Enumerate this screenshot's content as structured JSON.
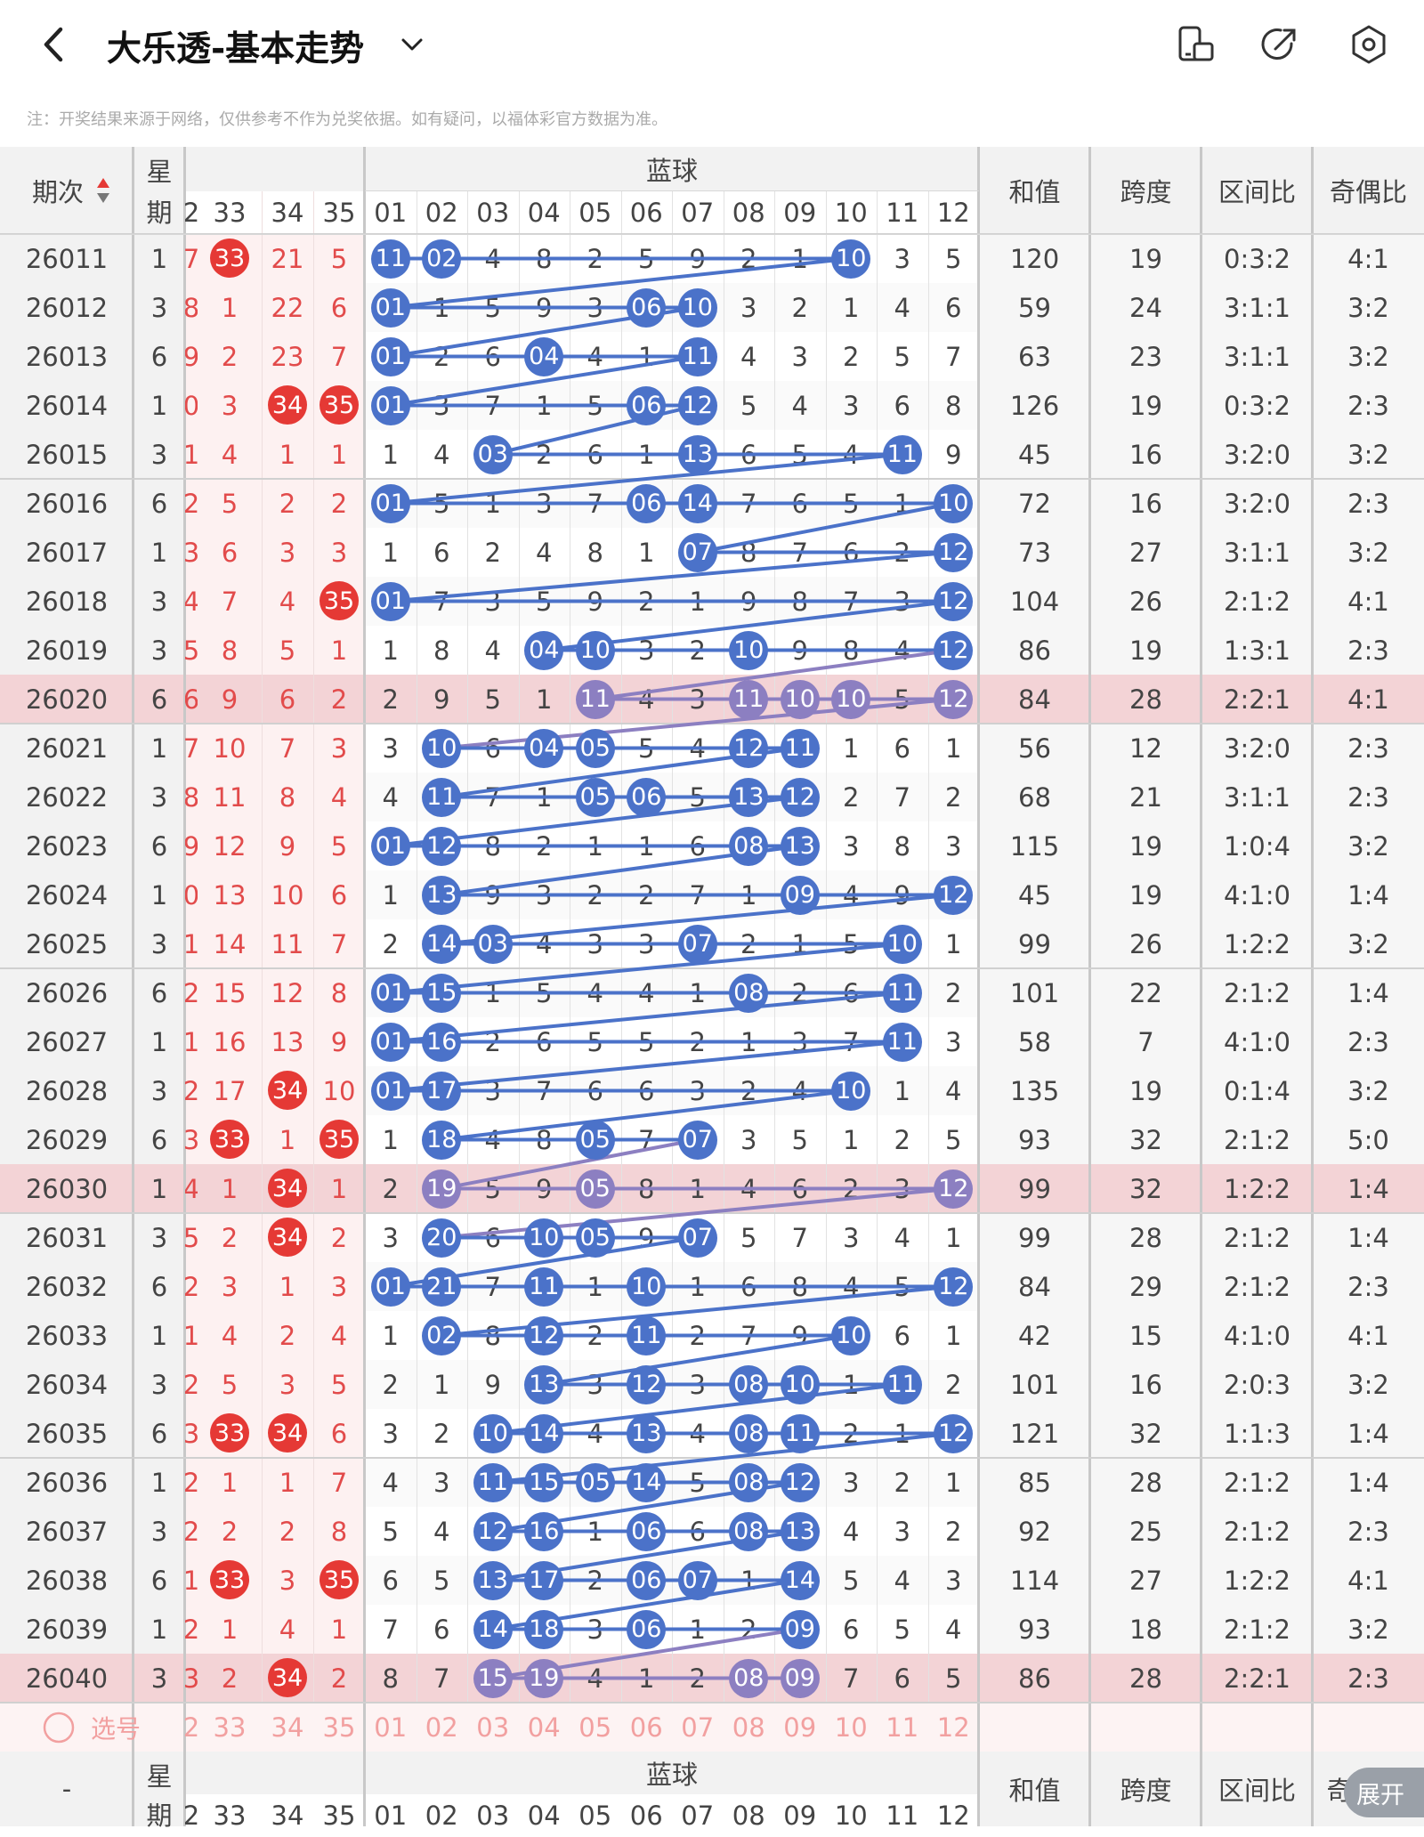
{
  "header": {
    "title": "大乐透-基本走势",
    "back_icon": "chevron-left-icon",
    "dropdown_icon": "chevron-down-icon",
    "actions": [
      "phone-rotate-icon",
      "share-icon",
      "settings-icon"
    ]
  },
  "note": "注：开奖结果来源于网络，仅供参考不作为兑奖依据。如有疑问，以福体彩官方数据为准。",
  "columns": {
    "period": "期次",
    "weekday": "星期",
    "blue_group": "蓝球",
    "sum": "和值",
    "span": "跨度",
    "zone_ratio": "区间比",
    "odd_even": "奇偶比",
    "red_partial": "2",
    "red_headers": [
      "33",
      "34",
      "35"
    ],
    "blue_headers": [
      "01",
      "02",
      "03",
      "04",
      "05",
      "06",
      "07",
      "08",
      "09",
      "10",
      "11",
      "12"
    ]
  },
  "rows": [
    {
      "period": "26011",
      "weekday": "1",
      "r0": "7",
      "red": [
        "33",
        "21",
        "5"
      ],
      "blue": [
        "11",
        "02",
        "4",
        "8",
        "2",
        "5",
        "9",
        "2",
        "1",
        "10",
        "3",
        "5"
      ],
      "sum": "120",
      "span": "19",
      "zone": "0:3:2",
      "oe": "4:1"
    },
    {
      "period": "26012",
      "weekday": "3",
      "r0": "8",
      "red": [
        "1",
        "22",
        "6"
      ],
      "blue": [
        "01",
        "1",
        "5",
        "9",
        "3",
        "06",
        "10",
        "3",
        "2",
        "1",
        "4",
        "6"
      ],
      "sum": "59",
      "span": "24",
      "zone": "3:1:1",
      "oe": "3:2"
    },
    {
      "period": "26013",
      "weekday": "6",
      "r0": "9",
      "red": [
        "2",
        "23",
        "7"
      ],
      "blue": [
        "01",
        "2",
        "6",
        "04",
        "4",
        "1",
        "11",
        "4",
        "3",
        "2",
        "5",
        "7"
      ],
      "sum": "63",
      "span": "23",
      "zone": "3:1:1",
      "oe": "3:2"
    },
    {
      "period": "26014",
      "weekday": "1",
      "r0": "0",
      "red": [
        "3",
        "34",
        "35"
      ],
      "blue": [
        "01",
        "3",
        "7",
        "1",
        "5",
        "06",
        "12",
        "5",
        "4",
        "3",
        "6",
        "8"
      ],
      "sum": "126",
      "span": "19",
      "zone": "0:3:2",
      "oe": "2:3"
    },
    {
      "period": "26015",
      "weekday": "3",
      "r0": "1",
      "red": [
        "4",
        "1",
        "1"
      ],
      "blue": [
        "1",
        "4",
        "03",
        "2",
        "6",
        "1",
        "13",
        "6",
        "5",
        "4",
        "11",
        "9"
      ],
      "sum": "45",
      "span": "16",
      "zone": "3:2:0",
      "oe": "3:2"
    },
    {
      "period": "26016",
      "weekday": "6",
      "r0": "2",
      "red": [
        "5",
        "2",
        "2"
      ],
      "blue": [
        "01",
        "5",
        "1",
        "3",
        "7",
        "06",
        "14",
        "7",
        "6",
        "5",
        "1",
        "10"
      ],
      "sum": "72",
      "span": "16",
      "zone": "3:2:0",
      "oe": "2:3"
    },
    {
      "period": "26017",
      "weekday": "1",
      "r0": "3",
      "red": [
        "6",
        "3",
        "3"
      ],
      "blue": [
        "1",
        "6",
        "2",
        "4",
        "8",
        "1",
        "07",
        "8",
        "7",
        "6",
        "2",
        "12"
      ],
      "sum": "73",
      "span": "27",
      "zone": "3:1:1",
      "oe": "3:2"
    },
    {
      "period": "26018",
      "weekday": "3",
      "r0": "4",
      "red": [
        "7",
        "4",
        "35"
      ],
      "blue": [
        "01",
        "7",
        "3",
        "5",
        "9",
        "2",
        "1",
        "9",
        "8",
        "7",
        "3",
        "12"
      ],
      "sum": "104",
      "span": "26",
      "zone": "2:1:2",
      "oe": "4:1"
    },
    {
      "period": "26019",
      "weekday": "3",
      "r0": "5",
      "red": [
        "8",
        "5",
        "1"
      ],
      "blue": [
        "1",
        "8",
        "4",
        "04",
        "10",
        "3",
        "2",
        "10",
        "9",
        "8",
        "4",
        "12"
      ],
      "sum": "86",
      "span": "19",
      "zone": "1:3:1",
      "oe": "2:3"
    },
    {
      "period": "26020",
      "weekday": "6",
      "r0": "6",
      "red": [
        "9",
        "6",
        "2"
      ],
      "blue": [
        "2",
        "9",
        "5",
        "1",
        "11",
        "4",
        "3",
        "11",
        "10",
        "10",
        "5",
        "12"
      ],
      "sum": "84",
      "span": "28",
      "zone": "2:2:1",
      "oe": "4:1"
    },
    {
      "period": "26021",
      "weekday": "1",
      "r0": "7",
      "red": [
        "10",
        "7",
        "3"
      ],
      "blue": [
        "3",
        "10",
        "6",
        "04",
        "05",
        "5",
        "4",
        "12",
        "11",
        "1",
        "6",
        "1"
      ],
      "sum": "56",
      "span": "12",
      "zone": "3:2:0",
      "oe": "2:3"
    },
    {
      "period": "26022",
      "weekday": "3",
      "r0": "8",
      "red": [
        "11",
        "8",
        "4"
      ],
      "blue": [
        "4",
        "11",
        "7",
        "1",
        "05",
        "06",
        "5",
        "13",
        "12",
        "2",
        "7",
        "2"
      ],
      "sum": "68",
      "span": "21",
      "zone": "3:1:1",
      "oe": "2:3"
    },
    {
      "period": "26023",
      "weekday": "6",
      "r0": "9",
      "red": [
        "12",
        "9",
        "5"
      ],
      "blue": [
        "01",
        "12",
        "8",
        "2",
        "1",
        "1",
        "6",
        "08",
        "13",
        "3",
        "8",
        "3"
      ],
      "sum": "115",
      "span": "19",
      "zone": "1:0:4",
      "oe": "3:2"
    },
    {
      "period": "26024",
      "weekday": "1",
      "r0": "0",
      "red": [
        "13",
        "10",
        "6"
      ],
      "blue": [
        "1",
        "13",
        "9",
        "3",
        "2",
        "2",
        "7",
        "1",
        "09",
        "4",
        "9",
        "12"
      ],
      "sum": "45",
      "span": "19",
      "zone": "4:1:0",
      "oe": "1:4"
    },
    {
      "period": "26025",
      "weekday": "3",
      "r0": "1",
      "red": [
        "14",
        "11",
        "7"
      ],
      "blue": [
        "2",
        "14",
        "03",
        "4",
        "3",
        "3",
        "07",
        "2",
        "1",
        "5",
        "10",
        "1"
      ],
      "sum": "99",
      "span": "26",
      "zone": "1:2:2",
      "oe": "3:2"
    },
    {
      "period": "26026",
      "weekday": "6",
      "r0": "2",
      "red": [
        "15",
        "12",
        "8"
      ],
      "blue": [
        "01",
        "15",
        "1",
        "5",
        "4",
        "4",
        "1",
        "08",
        "2",
        "6",
        "11",
        "2"
      ],
      "sum": "101",
      "span": "22",
      "zone": "2:1:2",
      "oe": "1:4"
    },
    {
      "period": "26027",
      "weekday": "1",
      "r0": "1",
      "red": [
        "16",
        "13",
        "9"
      ],
      "blue": [
        "01",
        "16",
        "2",
        "6",
        "5",
        "5",
        "2",
        "1",
        "3",
        "7",
        "11",
        "3"
      ],
      "sum": "58",
      "span": "7",
      "zone": "4:1:0",
      "oe": "2:3"
    },
    {
      "period": "26028",
      "weekday": "3",
      "r0": "2",
      "red": [
        "17",
        "34",
        "10"
      ],
      "blue": [
        "01",
        "17",
        "3",
        "7",
        "6",
        "6",
        "3",
        "2",
        "4",
        "10",
        "1",
        "4"
      ],
      "sum": "135",
      "span": "19",
      "zone": "0:1:4",
      "oe": "3:2"
    },
    {
      "period": "26029",
      "weekday": "6",
      "r0": "3",
      "red": [
        "33",
        "1",
        "35"
      ],
      "blue": [
        "1",
        "18",
        "4",
        "8",
        "05",
        "7",
        "07",
        "3",
        "5",
        "1",
        "2",
        "5"
      ],
      "sum": "93",
      "span": "32",
      "zone": "2:1:2",
      "oe": "5:0"
    },
    {
      "period": "26030",
      "weekday": "1",
      "r0": "4",
      "red": [
        "1",
        "34",
        "1"
      ],
      "blue": [
        "2",
        "19",
        "5",
        "9",
        "05",
        "8",
        "1",
        "4",
        "6",
        "2",
        "3",
        "12"
      ],
      "sum": "99",
      "span": "32",
      "zone": "1:2:2",
      "oe": "1:4"
    },
    {
      "period": "26031",
      "weekday": "3",
      "r0": "5",
      "red": [
        "2",
        "34",
        "2"
      ],
      "blue": [
        "3",
        "20",
        "6",
        "10",
        "05",
        "9",
        "07",
        "5",
        "7",
        "3",
        "4",
        "1"
      ],
      "sum": "99",
      "span": "28",
      "zone": "2:1:2",
      "oe": "1:4"
    },
    {
      "period": "26032",
      "weekday": "6",
      "r0": "2",
      "red": [
        "3",
        "1",
        "3"
      ],
      "blue": [
        "01",
        "21",
        "7",
        "11",
        "1",
        "10",
        "1",
        "6",
        "8",
        "4",
        "5",
        "12"
      ],
      "sum": "84",
      "span": "29",
      "zone": "2:1:2",
      "oe": "2:3"
    },
    {
      "period": "26033",
      "weekday": "1",
      "r0": "1",
      "red": [
        "4",
        "2",
        "4"
      ],
      "blue": [
        "1",
        "02",
        "8",
        "12",
        "2",
        "11",
        "2",
        "7",
        "9",
        "10",
        "6",
        "1"
      ],
      "sum": "42",
      "span": "15",
      "zone": "4:1:0",
      "oe": "4:1"
    },
    {
      "period": "26034",
      "weekday": "3",
      "r0": "2",
      "red": [
        "5",
        "3",
        "5"
      ],
      "blue": [
        "2",
        "1",
        "9",
        "13",
        "3",
        "12",
        "3",
        "08",
        "10",
        "1",
        "11",
        "2"
      ],
      "sum": "101",
      "span": "16",
      "zone": "2:0:3",
      "oe": "3:2"
    },
    {
      "period": "26035",
      "weekday": "6",
      "r0": "3",
      "red": [
        "33",
        "34",
        "6"
      ],
      "blue": [
        "3",
        "2",
        "10",
        "14",
        "4",
        "13",
        "4",
        "08",
        "11",
        "2",
        "1",
        "12"
      ],
      "sum": "121",
      "span": "32",
      "zone": "1:1:3",
      "oe": "1:4"
    },
    {
      "period": "26036",
      "weekday": "1",
      "r0": "2",
      "red": [
        "1",
        "1",
        "7"
      ],
      "blue": [
        "4",
        "3",
        "11",
        "15",
        "05",
        "14",
        "5",
        "08",
        "12",
        "3",
        "2",
        "1"
      ],
      "sum": "85",
      "span": "28",
      "zone": "2:1:2",
      "oe": "1:4"
    },
    {
      "period": "26037",
      "weekday": "3",
      "r0": "2",
      "red": [
        "2",
        "2",
        "8"
      ],
      "blue": [
        "5",
        "4",
        "12",
        "16",
        "1",
        "06",
        "6",
        "08",
        "13",
        "4",
        "3",
        "2"
      ],
      "sum": "92",
      "span": "25",
      "zone": "2:1:2",
      "oe": "2:3"
    },
    {
      "period": "26038",
      "weekday": "6",
      "r0": "1",
      "red": [
        "33",
        "3",
        "35"
      ],
      "blue": [
        "6",
        "5",
        "13",
        "17",
        "2",
        "06",
        "07",
        "1",
        "14",
        "5",
        "4",
        "3"
      ],
      "sum": "114",
      "span": "27",
      "zone": "1:2:2",
      "oe": "4:1"
    },
    {
      "period": "26039",
      "weekday": "1",
      "r0": "2",
      "red": [
        "1",
        "4",
        "1"
      ],
      "blue": [
        "7",
        "6",
        "14",
        "18",
        "3",
        "06",
        "1",
        "2",
        "09",
        "6",
        "5",
        "4"
      ],
      "sum": "93",
      "span": "18",
      "zone": "2:1:2",
      "oe": "3:2"
    },
    {
      "period": "26040",
      "weekday": "3",
      "r0": "3",
      "red": [
        "2",
        "34",
        "2"
      ],
      "blue": [
        "8",
        "7",
        "15",
        "19",
        "4",
        "1",
        "2",
        "08",
        "09",
        "7",
        "6",
        "5"
      ],
      "sum": "86",
      "span": "28",
      "zone": "2:2:1",
      "oe": "2:3"
    }
  ],
  "highlighted_rows": [
    "26020",
    "26030",
    "26040"
  ],
  "selector": {
    "label": "选号",
    "red_partial": "2",
    "red": [
      "33",
      "34",
      "35"
    ],
    "blue": [
      "01",
      "02",
      "03",
      "04",
      "05",
      "06",
      "07",
      "08",
      "09",
      "10",
      "11",
      "12"
    ]
  },
  "footer": {
    "period": "-",
    "weekday": "星期",
    "blue_group": "蓝球",
    "sum": "和值",
    "span": "跨度",
    "zone_ratio": "区间比",
    "odd_even_partial": "奇",
    "red_partial": "2",
    "red": [
      "33",
      "34",
      "35"
    ],
    "blue": [
      "01",
      "02",
      "03",
      "04",
      "05",
      "06",
      "07",
      "08",
      "09",
      "10",
      "11",
      "12"
    ]
  },
  "expand_button": "展开",
  "colors": {
    "blue_ball": "#4b72c9",
    "purple_ball": "#8c7fc1",
    "red_ball": "#e53935",
    "red_text": "#e24b4b",
    "highlight_row": "#f3d3d6",
    "header_bg": "#f2f2f2"
  }
}
